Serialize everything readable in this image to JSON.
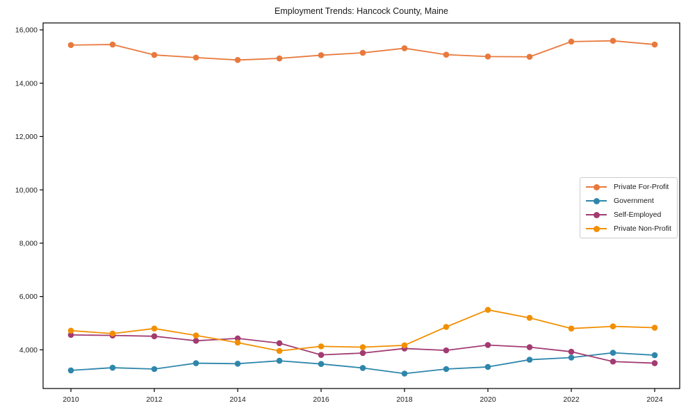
{
  "chart_data": {
    "type": "line",
    "title": "Employment Trends: Hancock County, Maine",
    "xlabel": "",
    "ylabel": "",
    "grid": false,
    "legend_position": "center right",
    "xlim": [
      2009.333,
      2024.6
    ],
    "ylim": [
      2550,
      16260
    ],
    "x": [
      2010,
      2011,
      2012,
      2013,
      2014,
      2015,
      2016,
      2017,
      2018,
      2019,
      2020,
      2021,
      2022,
      2023,
      2024
    ],
    "series": [
      {
        "name": "Private For-Profit",
        "color": "#E8793D",
        "values": [
          15430,
          15450,
          15060,
          14960,
          14870,
          14930,
          15050,
          15140,
          15310,
          15070,
          15000,
          14990,
          15560,
          15590,
          15450
        ]
      },
      {
        "name": "Government",
        "color": "#2E86AB",
        "values": [
          3230,
          3330,
          3280,
          3500,
          3480,
          3590,
          3470,
          3320,
          3110,
          3280,
          3360,
          3630,
          3710,
          3890,
          3800
        ]
      },
      {
        "name": "Self-Employed",
        "color": "#A23B72",
        "values": [
          4560,
          4540,
          4510,
          4340,
          4430,
          4250,
          3810,
          3880,
          4050,
          3980,
          4180,
          4100,
          3930,
          3560,
          3500
        ]
      },
      {
        "name": "Private Non-Profit",
        "color": "#F18F01",
        "values": [
          4720,
          4610,
          4800,
          4540,
          4270,
          3960,
          4130,
          4100,
          4170,
          4860,
          5500,
          5200,
          4800,
          4880,
          4830
        ]
      }
    ],
    "xticks": [
      {
        "value": 2010,
        "label": "2010"
      },
      {
        "value": 2012,
        "label": "2012"
      },
      {
        "value": 2014,
        "label": "2014"
      },
      {
        "value": 2016,
        "label": "2016"
      },
      {
        "value": 2018,
        "label": "2018"
      },
      {
        "value": 2020,
        "label": "2020"
      },
      {
        "value": 2022,
        "label": "2022"
      },
      {
        "value": 2024,
        "label": "2024"
      }
    ],
    "yticks": [
      {
        "value": 4000,
        "label": "4,000"
      },
      {
        "value": 6000,
        "label": "6,000"
      },
      {
        "value": 8000,
        "label": "8,000"
      },
      {
        "value": 10000,
        "label": "10,000"
      },
      {
        "value": 12000,
        "label": "12,000"
      },
      {
        "value": 14000,
        "label": "14,000"
      },
      {
        "value": 16000,
        "label": "16,000"
      }
    ]
  },
  "colors": {
    "axis": "#000000",
    "text": "#1a1a1a",
    "legend_border": "#cccccc",
    "background": "#ffffff"
  }
}
